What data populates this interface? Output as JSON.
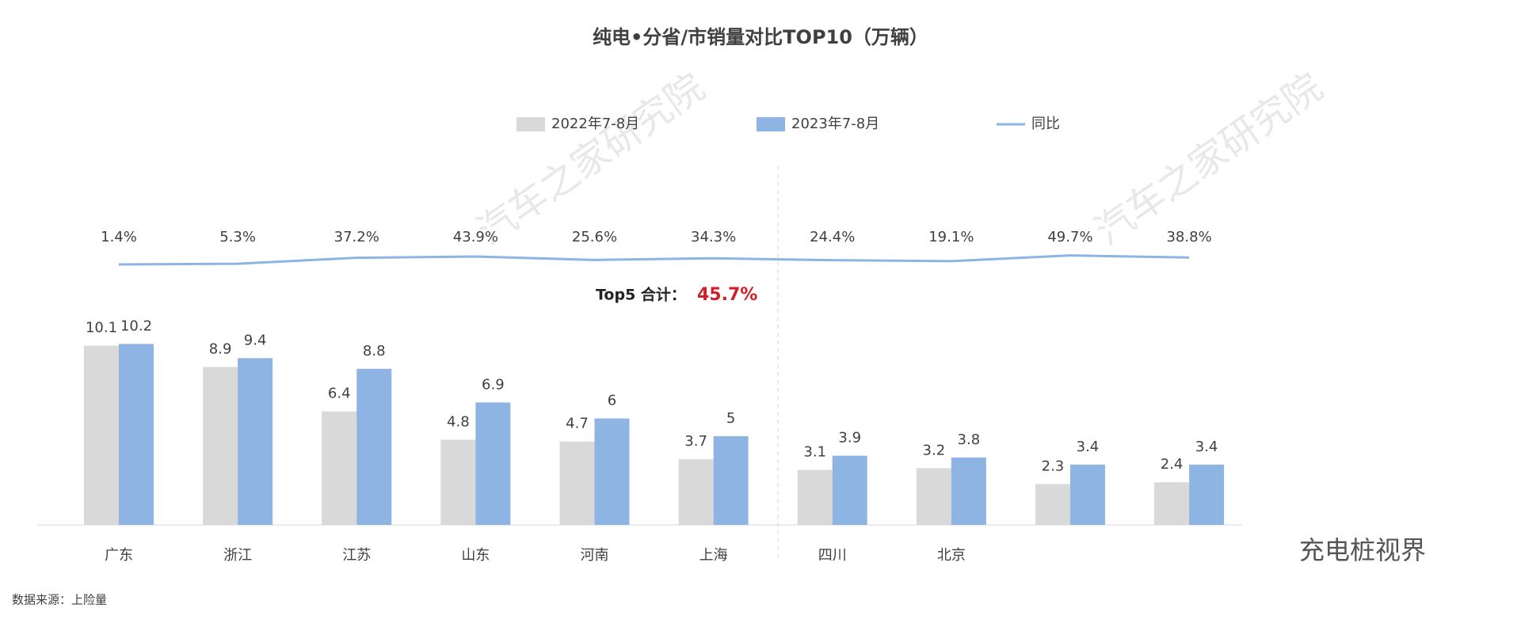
{
  "chart_data": {
    "type": "bar",
    "title": "纯电•分省/市销量对比TOP10（万辆）",
    "categories": [
      "广东",
      "浙江",
      "江苏",
      "山东",
      "河南",
      "上海",
      "四川",
      "北京",
      null,
      null
    ],
    "series": [
      {
        "name": "2022年7-8月",
        "color": "#d9d9d9",
        "values": [
          10.1,
          8.9,
          6.4,
          4.8,
          4.7,
          3.7,
          3.1,
          3.2,
          2.3,
          2.4
        ]
      },
      {
        "name": "2023年7-8月",
        "color": "#8db4e2",
        "values": [
          10.2,
          9.4,
          8.8,
          6.9,
          6.0,
          5.0,
          3.9,
          3.8,
          3.4,
          3.4
        ]
      },
      {
        "name": "同比",
        "type": "line",
        "axis": "y2",
        "color": "#8db4e2",
        "values": [
          1.4,
          5.3,
          37.2,
          43.9,
          25.6,
          34.3,
          24.4,
          19.1,
          49.7,
          38.8
        ],
        "value_labels": [
          "1.4%",
          "5.3%",
          "37.2%",
          "43.9%",
          "25.6%",
          "34.3%",
          "24.4%",
          "19.1%",
          "49.7%",
          "38.8%"
        ]
      }
    ],
    "ylim": [
      0,
      22
    ],
    "y2lim": [
      -1400,
      700
    ],
    "annotation": {
      "label": "Top5 合计：",
      "value": "45.7%"
    },
    "source": "数据来源：上险量",
    "watermarks": [
      "汽车之家研究院",
      "充电桩视界"
    ]
  }
}
